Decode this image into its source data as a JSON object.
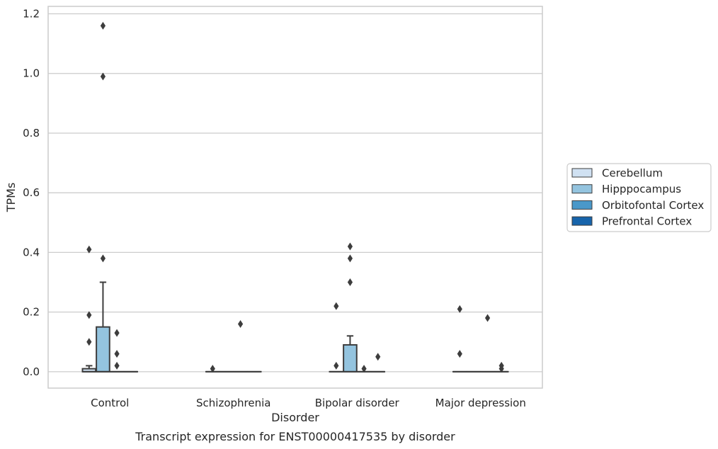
{
  "caption": "Transcript expression for ENST00000417535 by disorder",
  "chart_data": {
    "type": "box",
    "xlabel": "Disorder",
    "ylabel": "TPMs",
    "ylim": [
      -0.055,
      1.225
    ],
    "yticks": [
      0.0,
      0.2,
      0.4,
      0.6,
      0.8,
      1.0,
      1.2
    ],
    "ytick_labels": [
      "0.0",
      "0.2",
      "0.4",
      "0.6",
      "0.8",
      "1.0",
      "1.2"
    ],
    "grid": "horizontal",
    "legend_position": "right",
    "categories": [
      "Control",
      "Schizophrenia",
      "Bipolar disorder",
      "Major depression"
    ],
    "series": [
      {
        "name": "Cerebellum",
        "color": "#d0e1f2",
        "boxes": [
          {
            "q1": 0.0,
            "median": 0.0,
            "q3": 0.01,
            "whisker_low": 0.0,
            "whisker_high": 0.02,
            "outliers": [
              0.1,
              0.19,
              0.41
            ]
          },
          {
            "q1": 0.0,
            "median": 0.0,
            "q3": 0.0,
            "whisker_low": 0.0,
            "whisker_high": 0.0,
            "outliers": [
              0.01
            ]
          },
          {
            "q1": 0.0,
            "median": 0.0,
            "q3": 0.0,
            "whisker_low": 0.0,
            "whisker_high": 0.0,
            "outliers": [
              0.02,
              0.22
            ]
          },
          {
            "q1": 0.0,
            "median": 0.0,
            "q3": 0.0,
            "whisker_low": 0.0,
            "whisker_high": 0.0,
            "outliers": [
              0.06,
              0.21
            ]
          }
        ]
      },
      {
        "name": "Hipppocampus",
        "color": "#94c4df",
        "boxes": [
          {
            "q1": 0.0,
            "median": 0.0,
            "q3": 0.15,
            "whisker_low": 0.0,
            "whisker_high": 0.3,
            "outliers": [
              0.38,
              0.99,
              1.16
            ]
          },
          {
            "q1": 0.0,
            "median": 0.0,
            "q3": 0.0,
            "whisker_low": 0.0,
            "whisker_high": 0.0,
            "outliers": []
          },
          {
            "q1": 0.0,
            "median": 0.0,
            "q3": 0.09,
            "whisker_low": 0.0,
            "whisker_high": 0.12,
            "outliers": [
              0.3,
              0.38,
              0.42
            ]
          },
          {
            "q1": 0.0,
            "median": 0.0,
            "q3": 0.0,
            "whisker_low": 0.0,
            "whisker_high": 0.0,
            "outliers": []
          }
        ]
      },
      {
        "name": "Orbitofontal Cortex",
        "color": "#4a98c9",
        "boxes": [
          {
            "q1": 0.0,
            "median": 0.0,
            "q3": 0.0,
            "whisker_low": 0.0,
            "whisker_high": 0.0,
            "outliers": [
              0.02,
              0.06,
              0.13
            ]
          },
          {
            "q1": 0.0,
            "median": 0.0,
            "q3": 0.0,
            "whisker_low": 0.0,
            "whisker_high": 0.0,
            "outliers": [
              0.16
            ]
          },
          {
            "q1": 0.0,
            "median": 0.0,
            "q3": 0.0,
            "whisker_low": 0.0,
            "whisker_high": 0.0,
            "outliers": [
              0.01
            ]
          },
          {
            "q1": 0.0,
            "median": 0.0,
            "q3": 0.0,
            "whisker_low": 0.0,
            "whisker_high": 0.0,
            "outliers": [
              0.18
            ]
          }
        ]
      },
      {
        "name": "Prefrontal Cortex",
        "color": "#1764ab",
        "boxes": [
          {
            "q1": 0.0,
            "median": 0.0,
            "q3": 0.0,
            "whisker_low": 0.0,
            "whisker_high": 0.0,
            "outliers": []
          },
          {
            "q1": 0.0,
            "median": 0.0,
            "q3": 0.0,
            "whisker_low": 0.0,
            "whisker_high": 0.0,
            "outliers": []
          },
          {
            "q1": 0.0,
            "median": 0.0,
            "q3": 0.0,
            "whisker_low": 0.0,
            "whisker_high": 0.0,
            "outliers": [
              0.05
            ]
          },
          {
            "q1": 0.0,
            "median": 0.0,
            "q3": 0.0,
            "whisker_low": 0.0,
            "whisker_high": 0.0,
            "outliers": [
              0.01,
              0.02
            ]
          }
        ]
      }
    ]
  }
}
